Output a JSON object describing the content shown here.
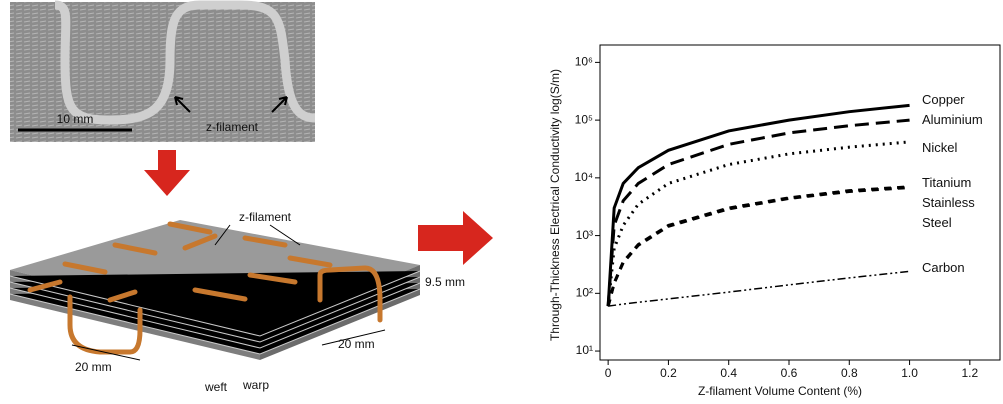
{
  "figure": {
    "photo_scale": "10 mm",
    "photo_label": "z-filament",
    "stack_label": "z-filament",
    "thickness": "9.5 mm",
    "pitch_left": "20 mm",
    "pitch_right": "20 mm",
    "weft": "weft",
    "warp": "warp"
  },
  "chart_data": {
    "type": "line",
    "x_label": "Z-filament Volume Content (%)",
    "y_label": "Through-Thickness Electrical Conductivity log(S/m)",
    "log_y": true,
    "x": [
      0,
      0.02,
      0.05,
      0.1,
      0.2,
      0.4,
      0.6,
      0.8,
      1.0
    ],
    "series": [
      {
        "name": "Copper",
        "color": "#000000",
        "dash": "solid",
        "values": [
          60,
          3000,
          8000,
          15000,
          30000,
          65000,
          100000,
          140000,
          180000
        ]
      },
      {
        "name": "Aluminium",
        "color": "#000000",
        "dash": "long",
        "values": [
          60,
          1500,
          4000,
          8000,
          17000,
          38000,
          60000,
          80000,
          100000
        ]
      },
      {
        "name": "Nickel",
        "color": "#000000",
        "dash": "dot",
        "values": [
          60,
          600,
          1500,
          3500,
          8000,
          17000,
          26000,
          34000,
          42000
        ]
      },
      {
        "name": "Titanium",
        "color": "#000000",
        "dash": "short",
        "values": [
          60,
          150,
          350,
          700,
          1500,
          3000,
          4500,
          6000,
          7000
        ]
      },
      {
        "name": "Stainless Steel",
        "color": "#000000",
        "dash": "short",
        "values": [
          60,
          150,
          340,
          680,
          1450,
          2900,
          4400,
          5800,
          6800
        ]
      },
      {
        "name": "Carbon",
        "color": "#000000",
        "dash": "dashdot",
        "values": [
          60,
          62,
          65,
          70,
          80,
          105,
          140,
          185,
          240
        ]
      }
    ],
    "xlim": [
      -0.027,
      1.3
    ],
    "ylim": [
      7,
      2000000
    ],
    "xticks": [
      0,
      0.2,
      0.4,
      0.6,
      0.8,
      {
        "value": 1,
        "label": "1.0"
      },
      1.2
    ],
    "yticks": [
      {
        "value": 10,
        "label": "10¹"
      },
      {
        "value": 100,
        "label": "10²"
      },
      {
        "value": 1000,
        "label": "10³"
      },
      {
        "value": 10000,
        "label": "10⁴"
      },
      {
        "value": 100000,
        "label": "10⁵"
      },
      {
        "value": 1000000,
        "label": "10⁶"
      }
    ]
  }
}
